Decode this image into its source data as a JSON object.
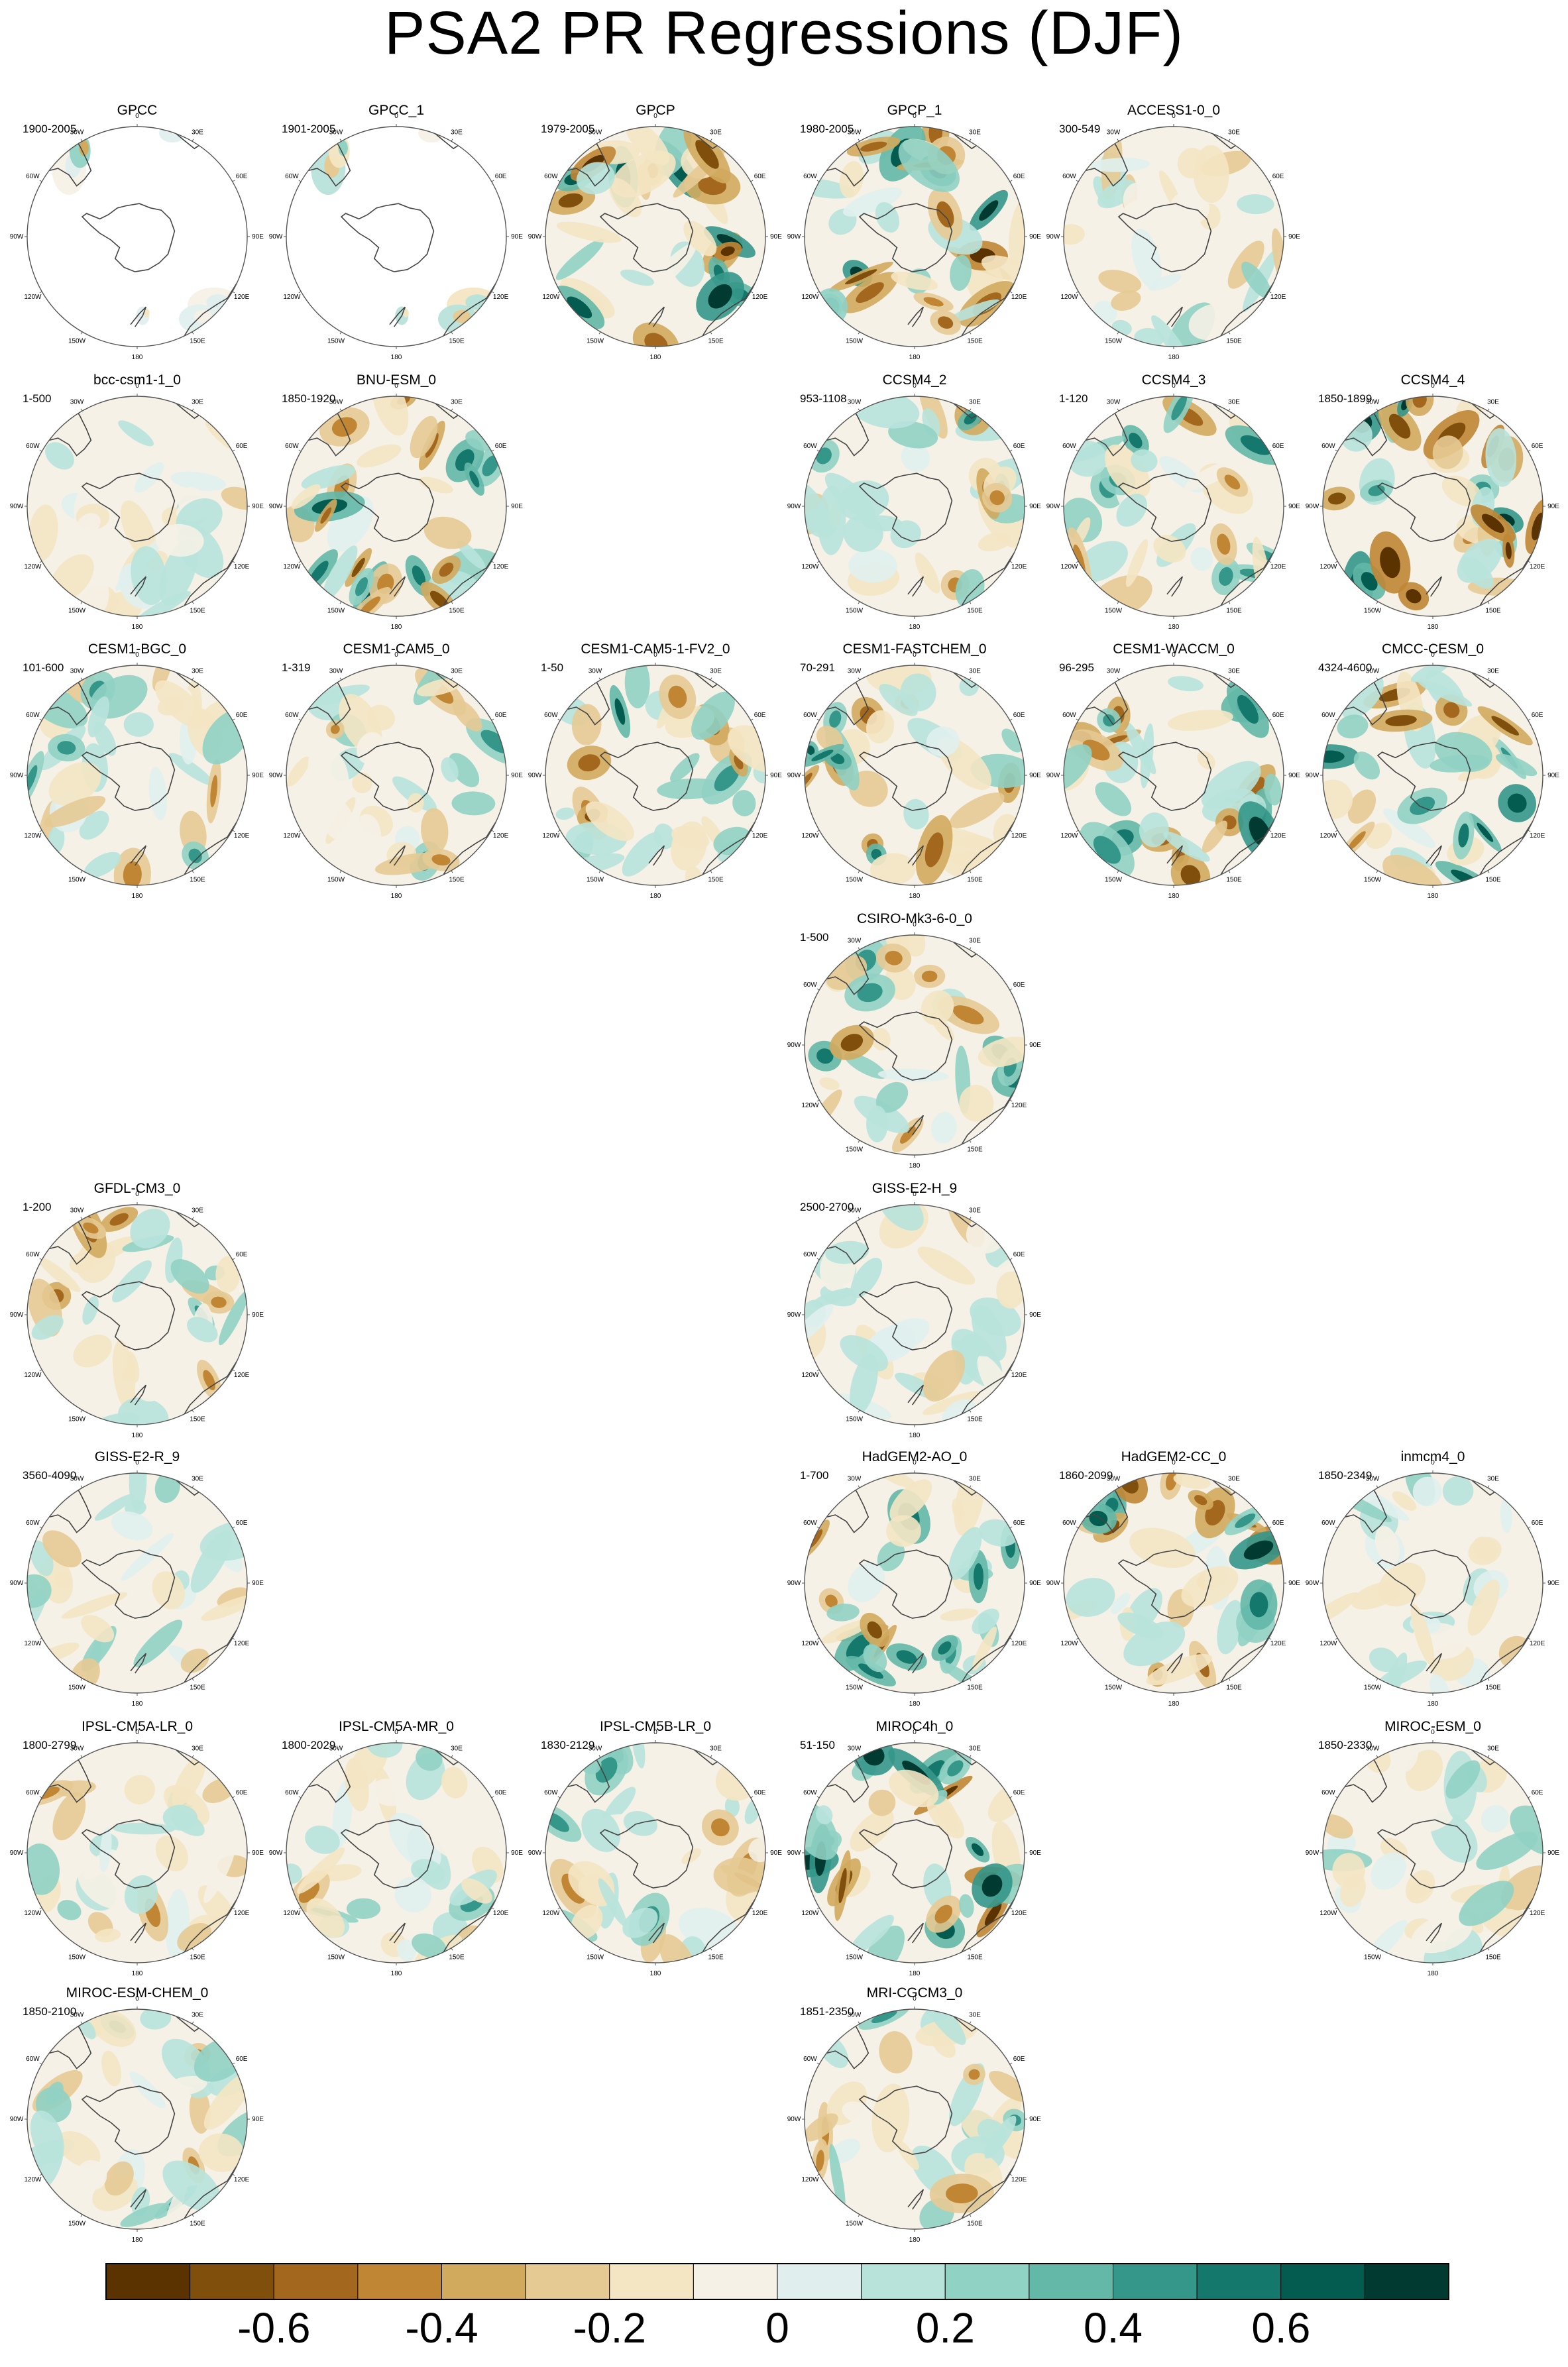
{
  "title": "PSA2 PR Regressions (DJF)",
  "longitude_labels": {
    "top": "0",
    "upper_left": "30W",
    "upper_right": "30E",
    "left_high": "60W",
    "right_high": "60E",
    "left": "90W",
    "right": "90E",
    "left_low": "120W",
    "right_low": "120E",
    "lower_left": "150W",
    "lower_right": "150E",
    "bottom": "180"
  },
  "panels": [
    {
      "name": "GPCC",
      "years": "1900-2005",
      "mask": "gpcc",
      "seed": 3,
      "intensity": 0.55
    },
    {
      "name": "GPCC_1",
      "years": "1901-2005",
      "mask": "gpcc",
      "seed": 7,
      "intensity": 0.55
    },
    {
      "name": "GPCP",
      "years": "1979-2005",
      "mask": "none",
      "seed": 11,
      "intensity": 0.95
    },
    {
      "name": "GPCP_1",
      "years": "1980-2005",
      "mask": "none",
      "seed": 13,
      "intensity": 1.0
    },
    {
      "name": "ACCESS1-0_0",
      "years": "300-549",
      "mask": "none",
      "seed": 17,
      "intensity": 0.5
    },
    {
      "name": "bcc-csm1-1_0",
      "years": "1-500",
      "mask": "none",
      "seed": 19,
      "intensity": 0.45
    },
    {
      "name": "BNU-ESM_0",
      "years": "1850-1920",
      "mask": "none",
      "seed": 23,
      "intensity": 0.85
    },
    {
      "name": "CCSM4_2",
      "years": "953-1108",
      "mask": "none",
      "seed": 29,
      "intensity": 0.7
    },
    {
      "name": "CCSM4_3",
      "years": "1-120",
      "mask": "none",
      "seed": 31,
      "intensity": 0.7
    },
    {
      "name": "CCSM4_4",
      "years": "1850-1899",
      "mask": "none",
      "seed": 37,
      "intensity": 1.0
    },
    {
      "name": "CESM1-BGC_0",
      "years": "101-600",
      "mask": "none",
      "seed": 41,
      "intensity": 0.6
    },
    {
      "name": "CESM1-CAM5_0",
      "years": "1-319",
      "mask": "none",
      "seed": 43,
      "intensity": 0.6
    },
    {
      "name": "CESM1-CAM5-1-FV2_0",
      "years": "1-50",
      "mask": "none",
      "seed": 47,
      "intensity": 0.8
    },
    {
      "name": "CESM1-FASTCHEM_0",
      "years": "70-291",
      "mask": "none",
      "seed": 53,
      "intensity": 0.75
    },
    {
      "name": "CESM1-WACCM_0",
      "years": "96-295",
      "mask": "none",
      "seed": 59,
      "intensity": 0.9
    },
    {
      "name": "CMCC-CESM_0",
      "years": "4324-4600",
      "mask": "none",
      "seed": 61,
      "intensity": 0.85
    },
    {
      "name": "CSIRO-Mk3-6-0_0",
      "years": "1-500",
      "mask": "none",
      "seed": 67,
      "intensity": 0.75
    },
    {
      "name": "GFDL-CM3_0",
      "years": "1-200",
      "mask": "none",
      "seed": 71,
      "intensity": 0.65
    },
    {
      "name": "GISS-E2-H_9",
      "years": "2500-2700",
      "mask": "none",
      "seed": 73,
      "intensity": 0.45
    },
    {
      "name": "GISS-E2-R_9",
      "years": "3560-4090",
      "mask": "none",
      "seed": 79,
      "intensity": 0.5
    },
    {
      "name": "HadGEM2-AO_0",
      "years": "1-700",
      "mask": "none",
      "seed": 83,
      "intensity": 0.85
    },
    {
      "name": "HadGEM2-CC_0",
      "years": "1860-2099",
      "mask": "none",
      "seed": 89,
      "intensity": 0.9
    },
    {
      "name": "inmcm4_0",
      "years": "1850-2349",
      "mask": "none",
      "seed": 97,
      "intensity": 0.45
    },
    {
      "name": "IPSL-CM5A-LR_0",
      "years": "1800-2799",
      "mask": "none",
      "seed": 101,
      "intensity": 0.55
    },
    {
      "name": "IPSL-CM5A-MR_0",
      "years": "1800-2029",
      "mask": "none",
      "seed": 103,
      "intensity": 0.6
    },
    {
      "name": "IPSL-CM5B-LR_0",
      "years": "1830-2129",
      "mask": "none",
      "seed": 107,
      "intensity": 0.6
    },
    {
      "name": "MIROC4h_0",
      "years": "51-150",
      "mask": "none",
      "seed": 109,
      "intensity": 1.0
    },
    {
      "name": "MIROC-ESM_0",
      "years": "1850-2330",
      "mask": "none",
      "seed": 113,
      "intensity": 0.5
    },
    {
      "name": "MIROC-ESM-CHEM_0",
      "years": "1850-2100",
      "mask": "none",
      "seed": 127,
      "intensity": 0.6
    },
    {
      "name": "MRI-CGCM3_0",
      "years": "1851-2350",
      "mask": "none",
      "seed": 131,
      "intensity": 0.6
    }
  ],
  "colorbar": {
    "levels": [
      -0.7,
      -0.6,
      -0.5,
      -0.4,
      -0.3,
      -0.2,
      -0.1,
      0,
      0.1,
      0.2,
      0.3,
      0.4,
      0.5,
      0.6,
      0.7
    ],
    "colors": [
      "#5a3300",
      "#814f0c",
      "#a3681d",
      "#c08634",
      "#d2aa5e",
      "#e5ca94",
      "#f4e6c3",
      "#f5f1e6",
      "#e0efee",
      "#b8e3db",
      "#90d2c4",
      "#63b8a8",
      "#34978a",
      "#14786c",
      "#045c50",
      "#003a30"
    ],
    "tick_labels": [
      {
        "label": "-0.6",
        "value": -0.6
      },
      {
        "label": "-0.4",
        "value": -0.4
      },
      {
        "label": "-0.2",
        "value": -0.2
      },
      {
        "label": "0",
        "value": 0
      },
      {
        "label": "0.2",
        "value": 0.2
      },
      {
        "label": "0.4",
        "value": 0.4
      },
      {
        "label": "0.6",
        "value": 0.6
      }
    ]
  }
}
